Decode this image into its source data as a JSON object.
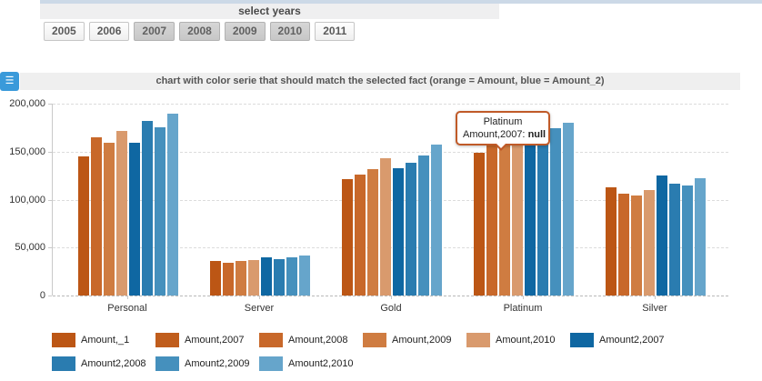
{
  "top_bar": {
    "title": "select years",
    "years": [
      {
        "label": "2005",
        "selected": false
      },
      {
        "label": "2006",
        "selected": false
      },
      {
        "label": "2007",
        "selected": true
      },
      {
        "label": "2008",
        "selected": true
      },
      {
        "label": "2009",
        "selected": true
      },
      {
        "label": "2010",
        "selected": true
      },
      {
        "label": "2011",
        "selected": false
      }
    ]
  },
  "chart_header": {
    "menu_icon": "hamburger-icon",
    "title": "chart with color serie that should match the selected fact (orange = Amount, blue = Amount_2)"
  },
  "tooltip": {
    "category": "Platinum",
    "series_label": "Amount,2007:",
    "value": "null"
  },
  "chart_data": {
    "type": "bar",
    "title": "chart with color serie that should match the selected fact (orange = Amount, blue = Amount_2)",
    "categories": [
      "Personal",
      "Server",
      "Gold",
      "Platinum",
      "Silver"
    ],
    "series": [
      {
        "name": "Amount,_1",
        "color": "#bc5615",
        "values": [
          145000,
          36000,
          121000,
          149000,
          113000
        ]
      },
      {
        "name": "Amount,2007",
        "color": "#c05d1c",
        "values": [
          null,
          null,
          null,
          null,
          null
        ]
      },
      {
        "name": "Amount,2008",
        "color": "#c8682a",
        "values": [
          165000,
          34000,
          126000,
          158000,
          106000
        ]
      },
      {
        "name": "Amount,2009",
        "color": "#cf7c41",
        "values": [
          159000,
          36000,
          132000,
          160000,
          104000
        ]
      },
      {
        "name": "Amount,2010",
        "color": "#d99a6d",
        "values": [
          172000,
          37000,
          143000,
          156000,
          110000
        ]
      },
      {
        "name": "Amount2,2007",
        "color": "#0f67a2",
        "values": [
          159000,
          40000,
          133000,
          175000,
          125000
        ]
      },
      {
        "name": "Amount2,2008",
        "color": "#2a7cb0",
        "values": [
          182000,
          38000,
          138000,
          174000,
          117000
        ]
      },
      {
        "name": "Amount2,2009",
        "color": "#4590bd",
        "values": [
          175000,
          40000,
          146000,
          174000,
          115000
        ]
      },
      {
        "name": "Amount2,2010",
        "color": "#66a5cb",
        "values": [
          190000,
          42000,
          157000,
          180000,
          122000
        ]
      }
    ],
    "ylim": [
      0,
      200000
    ],
    "ytick_labels_top_to_bottom": [
      "200,000",
      "150,000",
      "100,000",
      "50,000",
      "0"
    ],
    "grid": true,
    "legend_position": "bottom"
  }
}
